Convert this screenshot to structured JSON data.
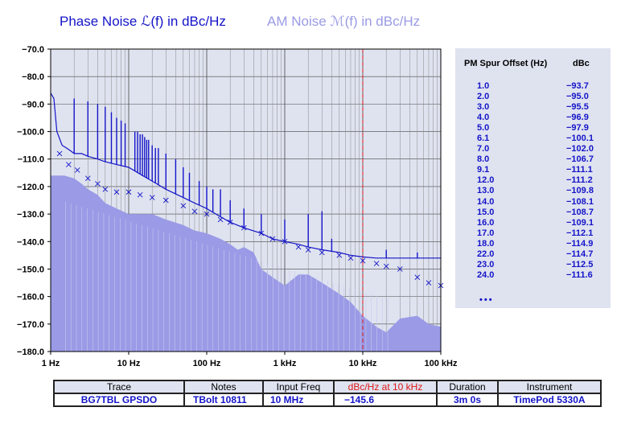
{
  "titles": {
    "phase_noise": "Phase  Noise ℒ(f) in dBc/Hz",
    "am_noise": "AM  Noise ℳ(f) in dBc/Hz"
  },
  "colors": {
    "phase_noise": "#1414c8",
    "am_noise": "#9a9ae6",
    "plot_background": "#dfe3f0",
    "marker_line": "#e01818"
  },
  "chart_data": {
    "type": "line",
    "x_scale": "log",
    "xlim": [
      1,
      100000
    ],
    "ylim": [
      -180,
      -70
    ],
    "grid": true,
    "x_tick_labels": [
      "1 Hz",
      "10 Hz",
      "100 Hz",
      "1 kHz",
      "10 kHz",
      "100 kHz"
    ],
    "x_tick_values": [
      1,
      10,
      100,
      1000,
      10000,
      100000
    ],
    "y_tick_labels": [
      "−70.0",
      "−80.0",
      "−90.0",
      "−100.0",
      "−110.0",
      "−120.0",
      "−130.0",
      "−140.0",
      "−150.0",
      "−160.0",
      "−170.0",
      "−180.0"
    ],
    "y_tick_values": [
      -70,
      -80,
      -90,
      -100,
      -110,
      -120,
      -130,
      -140,
      -150,
      -160,
      -170,
      -180
    ],
    "marker_x": 10000,
    "series": [
      {
        "name": "Phase  Noise ℒ(f) in dBc/Hz",
        "style": "line",
        "x": [
          1,
          1.1,
          1.2,
          1.4,
          1.6,
          1.8,
          2,
          2.5,
          3,
          4,
          5,
          7,
          10,
          15,
          20,
          30,
          50,
          70,
          100,
          150,
          200,
          300,
          500,
          700,
          1000,
          1500,
          2000,
          3000,
          5000,
          7000,
          10000,
          15000,
          20000,
          30000,
          50000,
          70000,
          100000
        ],
        "y": [
          -86,
          -88,
          -100,
          -105,
          -106,
          -107,
          -108,
          -108,
          -109,
          -110,
          -111,
          -112,
          -113,
          -116,
          -118,
          -121,
          -124,
          -126,
          -128,
          -131,
          -133,
          -135,
          -137,
          -139,
          -140,
          -141,
          -142,
          -143,
          -144,
          -145,
          -145.6,
          -146,
          -146,
          -146,
          -146,
          -146,
          -146
        ]
      },
      {
        "name": "AM  Noise ℳ(f) in dBc/Hz",
        "style": "area",
        "x": [
          1,
          1.5,
          2,
          2.5,
          3,
          4,
          5,
          7,
          10,
          15,
          20,
          30,
          50,
          70,
          100,
          150,
          200,
          250,
          300,
          400,
          500,
          700,
          1000,
          1500,
          2000,
          3000,
          5000,
          7000,
          10000,
          15000,
          20000,
          30000,
          50000,
          70000,
          100000
        ],
        "y": [
          -116,
          -116,
          -117,
          -119,
          -121,
          -123,
          -126,
          -128,
          -130,
          -130,
          -130,
          -132,
          -134,
          -136,
          -137,
          -139,
          -141,
          -143,
          -142,
          -144,
          -150,
          -153,
          -156,
          -152,
          -152,
          -155,
          -159,
          -162,
          -167,
          -171,
          -173,
          -168,
          -167,
          -170,
          -171
        ]
      },
      {
        "name": "",
        "style": "x-markers",
        "x": [
          1.3,
          1.7,
          2.2,
          3,
          4,
          5,
          7,
          10,
          14,
          20,
          30,
          50,
          70,
          100,
          150,
          200,
          300,
          500,
          700,
          1000,
          1500,
          2000,
          3000,
          5000,
          7000,
          10000,
          15000,
          20000,
          30000,
          50000,
          70000,
          100000
        ],
        "y": [
          -108,
          -112,
          -114,
          -117,
          -119,
          -121,
          -122,
          -122,
          -123,
          -124,
          -125,
          -127,
          -129,
          -130,
          -132,
          -133,
          -135,
          -137,
          -139,
          -140,
          -142,
          -143,
          -144,
          -145,
          -146,
          -147,
          -148,
          -149,
          -150,
          -153,
          -155,
          -156
        ]
      }
    ],
    "spurs": [
      {
        "f": 2,
        "dbc": -88
      },
      {
        "f": 3,
        "dbc": -89
      },
      {
        "f": 4,
        "dbc": -90
      },
      {
        "f": 5,
        "dbc": -91
      },
      {
        "f": 6,
        "dbc": -93
      },
      {
        "f": 7,
        "dbc": -95
      },
      {
        "f": 8,
        "dbc": -96
      },
      {
        "f": 9,
        "dbc": -97
      },
      {
        "f": 12,
        "dbc": -100
      },
      {
        "f": 13,
        "dbc": -100
      },
      {
        "f": 14,
        "dbc": -101
      },
      {
        "f": 15,
        "dbc": -101
      },
      {
        "f": 16,
        "dbc": -102
      },
      {
        "f": 17,
        "dbc": -103
      },
      {
        "f": 18,
        "dbc": -103
      },
      {
        "f": 20,
        "dbc": -105
      },
      {
        "f": 22,
        "dbc": -106
      },
      {
        "f": 24,
        "dbc": -106
      },
      {
        "f": 30,
        "dbc": -108
      },
      {
        "f": 40,
        "dbc": -110
      },
      {
        "f": 50,
        "dbc": -113
      },
      {
        "f": 60,
        "dbc": -115
      },
      {
        "f": 80,
        "dbc": -118
      },
      {
        "f": 100,
        "dbc": -120
      },
      {
        "f": 120,
        "dbc": -121
      },
      {
        "f": 150,
        "dbc": -121
      },
      {
        "f": 200,
        "dbc": -125
      },
      {
        "f": 300,
        "dbc": -128
      },
      {
        "f": 500,
        "dbc": -130
      },
      {
        "f": 1000,
        "dbc": -132
      },
      {
        "f": 2000,
        "dbc": -130
      },
      {
        "f": 3000,
        "dbc": -129
      },
      {
        "f": 4000,
        "dbc": -139
      },
      {
        "f": 20000,
        "dbc": -143
      },
      {
        "f": 50000,
        "dbc": -144
      }
    ]
  },
  "spur_table": {
    "header_offset": "PM Spur Offset (Hz)",
    "header_dbc": "dBc",
    "rows": [
      {
        "offset": "1.0",
        "dbc": "−93.7"
      },
      {
        "offset": "2.0",
        "dbc": "−95.0"
      },
      {
        "offset": "3.0",
        "dbc": "−95.5"
      },
      {
        "offset": "4.0",
        "dbc": "−96.9"
      },
      {
        "offset": "5.0",
        "dbc": "−97.9"
      },
      {
        "offset": "6.1",
        "dbc": "−100.1"
      },
      {
        "offset": "7.0",
        "dbc": "−102.0"
      },
      {
        "offset": "8.0",
        "dbc": "−106.7"
      },
      {
        "offset": "9.1",
        "dbc": "−111.1"
      },
      {
        "offset": "12.0",
        "dbc": "−111.2"
      },
      {
        "offset": "13.0",
        "dbc": "−109.8"
      },
      {
        "offset": "14.0",
        "dbc": "−108.1"
      },
      {
        "offset": "15.0",
        "dbc": "−108.7"
      },
      {
        "offset": "16.0",
        "dbc": "−109.1"
      },
      {
        "offset": "17.0",
        "dbc": "−112.1"
      },
      {
        "offset": "18.0",
        "dbc": "−114.9"
      },
      {
        "offset": "22.0",
        "dbc": "−114.7"
      },
      {
        "offset": "23.0",
        "dbc": "−112.5"
      },
      {
        "offset": "24.0",
        "dbc": "−111.6"
      }
    ],
    "more": "•••"
  },
  "info_table": {
    "headers": {
      "trace": "Trace",
      "notes": "Notes",
      "input_freq": "Input Freq",
      "dbc_10k": "dBc/Hz at 10 kHz",
      "duration": "Duration",
      "instrument": "Instrument"
    },
    "values": {
      "trace": "BG7TBL GPSDO",
      "notes": "TBolt 10811",
      "input_freq": "10 MHz",
      "dbc_10k": "−145.6",
      "duration": "3m 0s",
      "instrument": "TimePod 5330A"
    }
  }
}
